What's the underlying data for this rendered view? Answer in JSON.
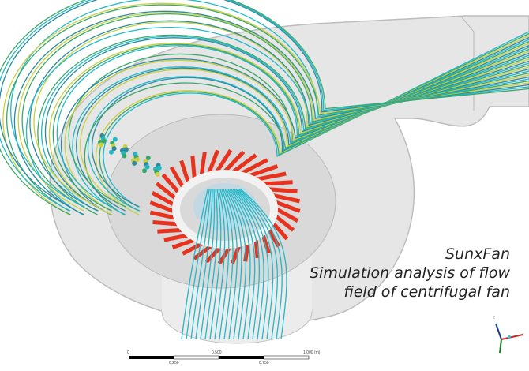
{
  "caption": {
    "brand": "SunxFan",
    "line1": "Simulation analysis of flow",
    "line2": "field of centrifugal fan"
  },
  "scale_bar": {
    "top_labels": [
      "0",
      "0.500",
      "1.000 (m)"
    ],
    "bottom_labels": [
      "0.250",
      "0.750"
    ]
  },
  "axis_triad": {
    "label": "Z"
  },
  "colors": {
    "impeller": "#e8321e",
    "streamline_cyan": "#20b8c8",
    "streamline_green": "#3aa86a",
    "streamline_yellow": "#c8d040",
    "casing": "#d8d8d8"
  }
}
